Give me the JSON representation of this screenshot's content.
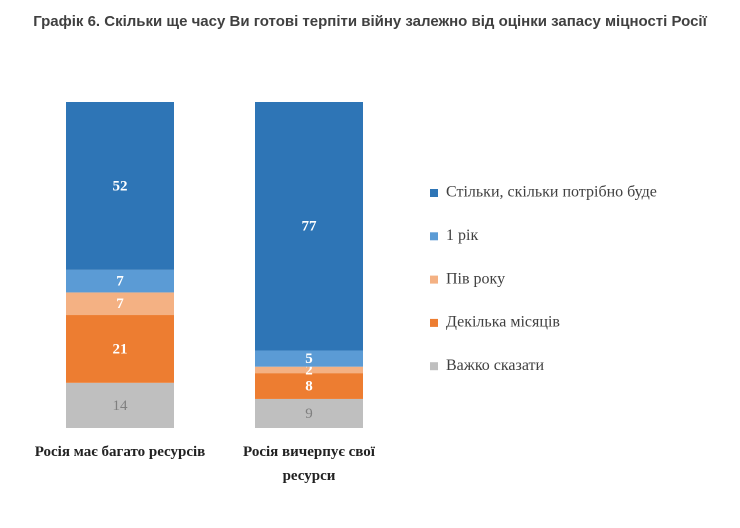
{
  "chart_data": {
    "type": "stacked-bar",
    "title": "Графік 6. Скільки ще часу Ви готові терпіти війну залежно від оцінки запасу міцності Росії",
    "categories": [
      "Росія має багато ресурсів",
      "Росія вичерпує свої ресурси"
    ],
    "series": [
      {
        "name": "Стільки, скільки потрібно буде",
        "color": "#2e75b6",
        "values": [
          52,
          77
        ]
      },
      {
        "name": "1 рік",
        "color": "#5b9bd5",
        "values": [
          7,
          5
        ]
      },
      {
        "name": "Пів року",
        "color": "#f4b183",
        "values": [
          7,
          2
        ]
      },
      {
        "name": "Декілька місяців",
        "color": "#ed7d31",
        "values": [
          21,
          8
        ]
      },
      {
        "name": "Важко сказати",
        "color": "#bfbfbf",
        "values": [
          14,
          9
        ]
      }
    ]
  }
}
